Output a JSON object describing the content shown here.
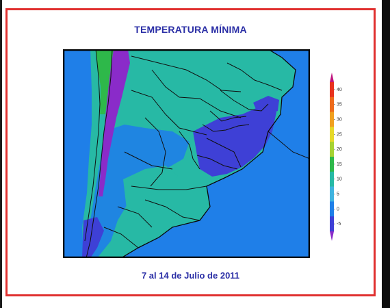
{
  "title": "TEMPERATURA MÍNIMA",
  "caption": "7 al 14 de Julio de 2011",
  "legend": {
    "ticks": [
      "40",
      "35",
      "30",
      "25",
      "20",
      "15",
      "10",
      "5",
      "0",
      "-5"
    ],
    "colors": [
      "#c0157f",
      "#e8321e",
      "#ee6b1c",
      "#f0a020",
      "#e6d92a",
      "#a6d233",
      "#2eb84a",
      "#27b9a5",
      "#3fb3df",
      "#1f7fe8",
      "#3e40d6",
      "#8a2bc9"
    ]
  }
}
